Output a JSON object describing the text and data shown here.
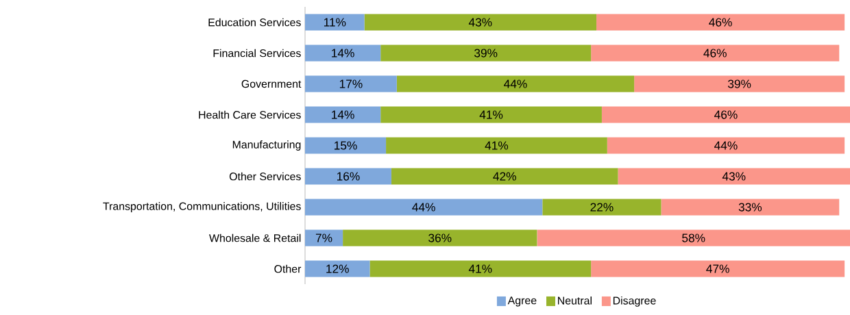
{
  "chart_data": {
    "type": "bar",
    "orientation": "horizontal",
    "stacked": true,
    "data_labels": true,
    "legend": "bottom",
    "categories": [
      "Education Services",
      "Financial Services",
      "Government",
      "Health Care Services",
      "Manufacturing",
      "Other Services",
      "Transportation, Communications, Utilities",
      "Wholesale & Retail",
      "Other"
    ],
    "series": [
      {
        "name": "Agree",
        "color": "#7fa8dc",
        "values": [
          11,
          14,
          17,
          14,
          15,
          16,
          44,
          7,
          12
        ],
        "value_labels": [
          "11%",
          "14%",
          "17%",
          "14%",
          "15%",
          "16%",
          "44%",
          "7%",
          "12%"
        ]
      },
      {
        "name": "Neutral",
        "color": "#98b42c",
        "values": [
          43,
          39,
          44,
          41,
          41,
          42,
          22,
          36,
          41
        ],
        "value_labels": [
          "43%",
          "39%",
          "44%",
          "41%",
          "41%",
          "42%",
          "22%",
          "36%",
          "41%"
        ]
      },
      {
        "name": "Disagree",
        "color": "#fb968a",
        "values": [
          46,
          46,
          39,
          46,
          44,
          43,
          33,
          58,
          47
        ],
        "value_labels": [
          "46%",
          "46%",
          "39%",
          "46%",
          "44%",
          "43%",
          "33%",
          "58%",
          "47%"
        ]
      }
    ]
  }
}
